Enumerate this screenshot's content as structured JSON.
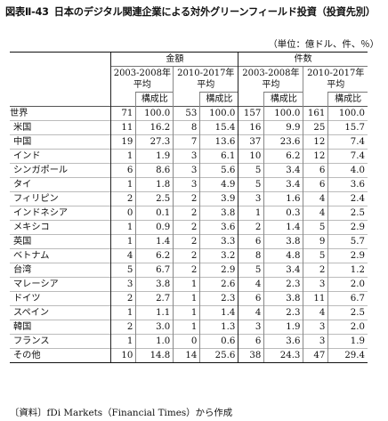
{
  "title": {
    "figure_no": "図表Ⅱ-43",
    "text": "日本のデジタル関連企業による対外グリーンフィールド投資（投資先別）"
  },
  "unit": "（単位：億ドル、件、％）",
  "headers": {
    "amount": "金額",
    "count": "件数",
    "p1": "2003-2008年平均",
    "p2": "2010-2017年平均",
    "p3": "2003-2008年平均",
    "p4": "2010-2017年平均",
    "share": "構成比"
  },
  "rows": [
    {
      "name": "世界",
      "a1": "71",
      "s1": "100.0",
      "a2": "53",
      "s2": "100.0",
      "c1": "157",
      "cs1": "100.0",
      "c2": "161",
      "cs2": "100.0"
    },
    {
      "name": "米国",
      "a1": "11",
      "s1": "16.2",
      "a2": "8",
      "s2": "15.4",
      "c1": "16",
      "cs1": "9.9",
      "c2": "25",
      "cs2": "15.7"
    },
    {
      "name": "中国",
      "a1": "19",
      "s1": "27.3",
      "a2": "7",
      "s2": "13.6",
      "c1": "37",
      "cs1": "23.6",
      "c2": "12",
      "cs2": "7.4"
    },
    {
      "name": "インド",
      "a1": "1",
      "s1": "1.9",
      "a2": "3",
      "s2": "6.1",
      "c1": "10",
      "cs1": "6.2",
      "c2": "12",
      "cs2": "7.4"
    },
    {
      "name": "シンガポール",
      "a1": "6",
      "s1": "8.6",
      "a2": "3",
      "s2": "5.6",
      "c1": "5",
      "cs1": "3.4",
      "c2": "6",
      "cs2": "4.0"
    },
    {
      "name": "タイ",
      "a1": "1",
      "s1": "1.8",
      "a2": "3",
      "s2": "4.9",
      "c1": "5",
      "cs1": "3.4",
      "c2": "6",
      "cs2": "3.6"
    },
    {
      "name": "フィリピン",
      "a1": "2",
      "s1": "2.5",
      "a2": "2",
      "s2": "3.9",
      "c1": "3",
      "cs1": "1.6",
      "c2": "4",
      "cs2": "2.4"
    },
    {
      "name": "インドネシア",
      "a1": "0",
      "s1": "0.1",
      "a2": "2",
      "s2": "3.8",
      "c1": "1",
      "cs1": "0.3",
      "c2": "4",
      "cs2": "2.5"
    },
    {
      "name": "メキシコ",
      "a1": "1",
      "s1": "0.9",
      "a2": "2",
      "s2": "3.6",
      "c1": "2",
      "cs1": "1.4",
      "c2": "5",
      "cs2": "2.9"
    },
    {
      "name": "英国",
      "a1": "1",
      "s1": "1.4",
      "a2": "2",
      "s2": "3.3",
      "c1": "6",
      "cs1": "3.8",
      "c2": "9",
      "cs2": "5.7"
    },
    {
      "name": "ベトナム",
      "a1": "4",
      "s1": "6.2",
      "a2": "2",
      "s2": "3.2",
      "c1": "8",
      "cs1": "4.8",
      "c2": "5",
      "cs2": "2.9"
    },
    {
      "name": "台湾",
      "a1": "5",
      "s1": "6.7",
      "a2": "2",
      "s2": "2.9",
      "c1": "5",
      "cs1": "3.4",
      "c2": "2",
      "cs2": "1.2"
    },
    {
      "name": "マレーシア",
      "a1": "3",
      "s1": "3.8",
      "a2": "1",
      "s2": "2.6",
      "c1": "4",
      "cs1": "2.3",
      "c2": "3",
      "cs2": "2.0"
    },
    {
      "name": "ドイツ",
      "a1": "2",
      "s1": "2.7",
      "a2": "1",
      "s2": "2.3",
      "c1": "6",
      "cs1": "3.8",
      "c2": "11",
      "cs2": "6.7"
    },
    {
      "name": "スペイン",
      "a1": "1",
      "s1": "1.1",
      "a2": "1",
      "s2": "1.4",
      "c1": "4",
      "cs1": "2.3",
      "c2": "4",
      "cs2": "2.5"
    },
    {
      "name": "韓国",
      "a1": "2",
      "s1": "3.0",
      "a2": "1",
      "s2": "1.3",
      "c1": "3",
      "cs1": "1.9",
      "c2": "3",
      "cs2": "2.0"
    },
    {
      "name": "フランス",
      "a1": "1",
      "s1": "1.0",
      "a2": "0",
      "s2": "0.6",
      "c1": "6",
      "cs1": "3.6",
      "c2": "3",
      "cs2": "1.9"
    },
    {
      "name": "その他",
      "a1": "10",
      "s1": "14.8",
      "a2": "14",
      "s2": "25.6",
      "c1": "38",
      "cs1": "24.3",
      "c2": "47",
      "cs2": "29.4"
    }
  ],
  "source": "〔資料〕fDi Markets（Financial Times）から作成"
}
